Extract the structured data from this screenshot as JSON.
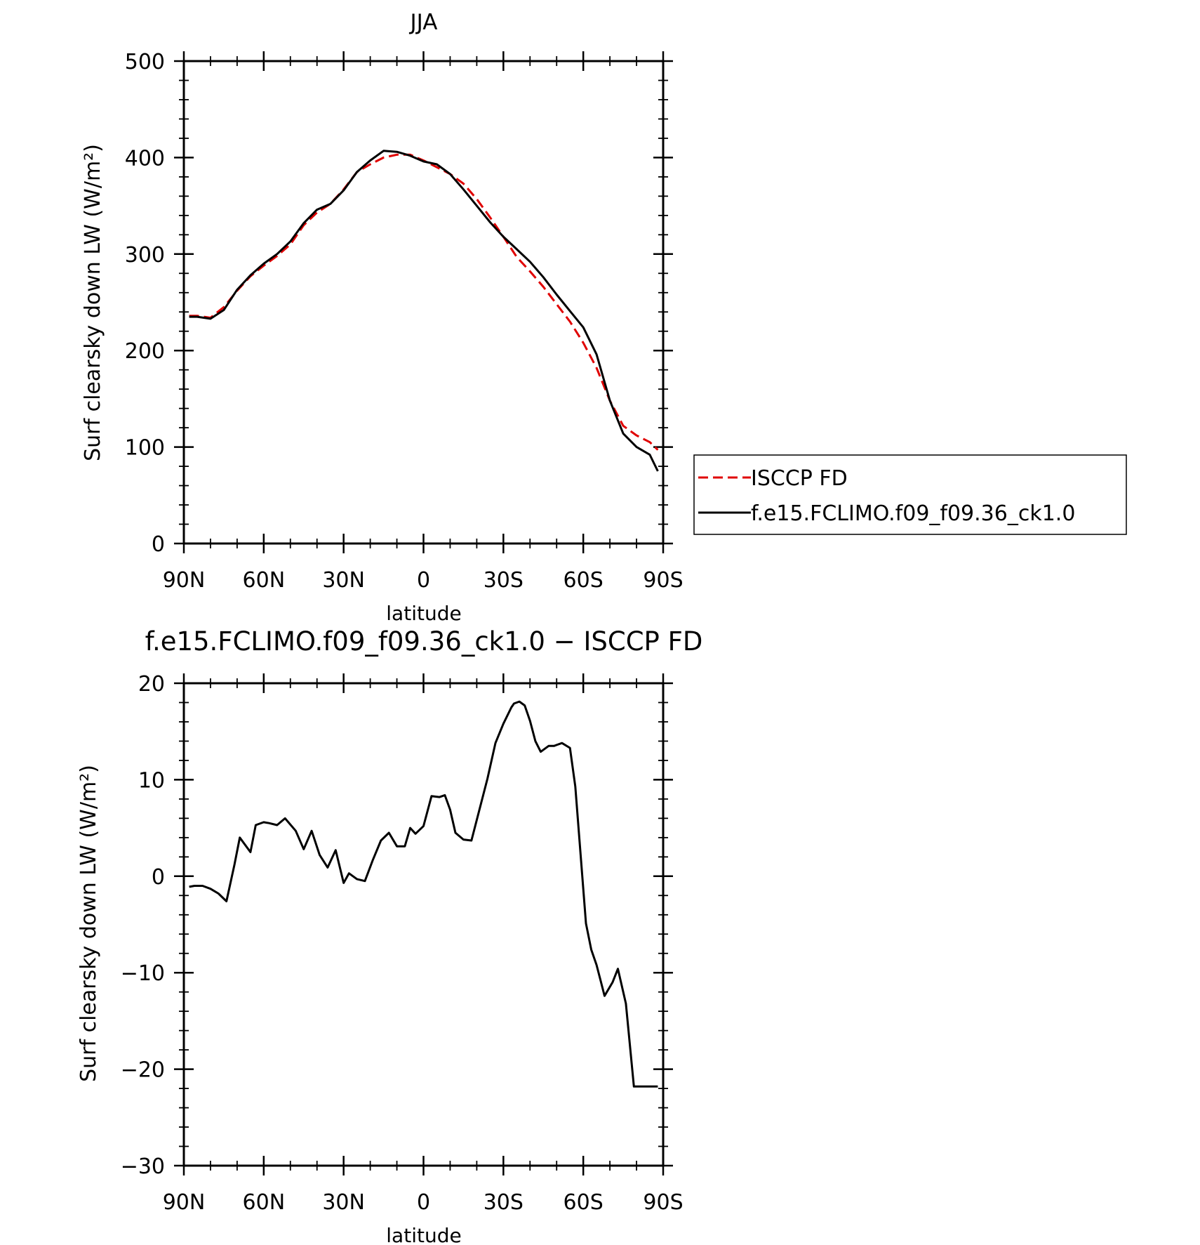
{
  "chart_data": [
    {
      "type": "line",
      "title": "JJA",
      "xlabel": "latitude",
      "ylabel": "Surf clearsky down LW (W/m²)",
      "xlim": [
        -90,
        90
      ],
      "ylim": [
        0,
        500
      ],
      "xticks": [
        -90,
        -60,
        -30,
        0,
        30,
        60,
        90
      ],
      "xtick_labels": [
        "90N",
        "60N",
        "30N",
        "0",
        "30S",
        "60S",
        "90S"
      ],
      "yticks": [
        0,
        100,
        200,
        300,
        400,
        500
      ],
      "ytick_labels": [
        "0",
        "100",
        "200",
        "300",
        "400",
        "500"
      ],
      "legend_position": "right",
      "series": [
        {
          "name": "ISCCP FD",
          "color": "#e00000",
          "dash": "dashed",
          "x": [
            -88,
            -85,
            -80,
            -75,
            -70,
            -65,
            -60,
            -55,
            -50,
            -45,
            -40,
            -35,
            -30,
            -25,
            -20,
            -15,
            -10,
            -5,
            0,
            5,
            10,
            15,
            20,
            25,
            30,
            35,
            40,
            45,
            50,
            55,
            60,
            65,
            70,
            75,
            80,
            85,
            88
          ],
          "y": [
            236,
            236,
            234,
            245,
            262,
            277,
            288,
            298,
            310,
            330,
            343,
            352,
            367,
            385,
            393,
            400,
            403,
            403,
            397,
            390,
            383,
            373,
            357,
            338,
            318,
            297,
            282,
            266,
            248,
            230,
            208,
            182,
            148,
            122,
            112,
            105,
            97
          ]
        },
        {
          "name": "f.e15.FCLIMO.f09_f09.36_ck1.0",
          "color": "#000000",
          "dash": "solid",
          "x": [
            -88,
            -85,
            -80,
            -75,
            -70,
            -65,
            -60,
            -55,
            -50,
            -45,
            -40,
            -35,
            -30,
            -25,
            -20,
            -15,
            -10,
            -5,
            0,
            5,
            10,
            15,
            20,
            25,
            30,
            35,
            40,
            45,
            50,
            55,
            60,
            65,
            70,
            75,
            80,
            85,
            88
          ],
          "y": [
            235,
            235,
            233,
            242,
            263,
            278,
            290,
            300,
            313,
            332,
            346,
            352,
            366,
            385,
            397,
            407,
            406,
            402,
            396,
            393,
            383,
            367,
            350,
            333,
            318,
            305,
            292,
            276,
            258,
            241,
            224,
            196,
            148,
            114,
            100,
            92,
            75
          ]
        }
      ]
    },
    {
      "type": "line",
      "title": "f.e15.FCLIMO.f09_f09.36_ck1.0 − ISCCP FD",
      "xlabel": "latitude",
      "ylabel": "Surf clearsky down LW (W/m²)",
      "xlim": [
        -90,
        90
      ],
      "ylim": [
        -30,
        20
      ],
      "xticks": [
        -90,
        -60,
        -30,
        0,
        30,
        60,
        90
      ],
      "xtick_labels": [
        "90N",
        "60N",
        "30N",
        "0",
        "30S",
        "60S",
        "90S"
      ],
      "yticks": [
        -30,
        -20,
        -10,
        0,
        10,
        20
      ],
      "ytick_labels": [
        "−30",
        "−20",
        "−10",
        "0",
        "10",
        "20"
      ],
      "series": [
        {
          "color": "#000000",
          "x": [
            -88,
            -86,
            -83,
            -80,
            -77,
            -74,
            -71,
            -69,
            -65,
            -63,
            -60,
            -58,
            -55,
            -52,
            -48,
            -45,
            -42,
            -39,
            -36,
            -33,
            -30,
            -28,
            -25,
            -22,
            -19,
            -16,
            -13,
            -10,
            -7,
            -5,
            -3,
            0,
            3,
            6,
            8,
            10,
            12,
            15,
            18,
            21,
            24,
            27,
            30,
            33,
            34,
            36,
            38,
            40,
            42,
            44,
            47,
            49,
            50,
            52,
            55,
            57,
            61,
            63,
            65,
            68,
            71,
            73,
            76,
            79,
            82,
            85,
            87,
            88
          ],
          "y": [
            -1.1,
            -1,
            -1.0,
            -1.3,
            -1.8,
            -2.6,
            1.2,
            4.0,
            2.5,
            5.3,
            5.6,
            5.5,
            5.3,
            6.0,
            4.7,
            2.8,
            4.7,
            2.2,
            0.9,
            2.7,
            -0.7,
            0.3,
            -0.3,
            -0.5,
            1.7,
            3.7,
            4.5,
            3.1,
            3.1,
            5.0,
            4.4,
            5.2,
            8.3,
            8.2,
            8.4,
            6.9,
            4.5,
            3.8,
            3.7,
            6.9,
            10.1,
            13.8,
            15.8,
            17.5,
            17.9,
            18.1,
            17.7,
            16.1,
            14.0,
            12.9,
            13.5,
            13.5,
            13.6,
            13.8,
            13.3,
            9.3,
            -4.9,
            -7.6,
            -9.2,
            -12.4,
            -11.0,
            -9.6,
            -13.2,
            -21.8,
            -21.8,
            -21.8,
            -21.8,
            -21.8
          ]
        }
      ]
    }
  ]
}
